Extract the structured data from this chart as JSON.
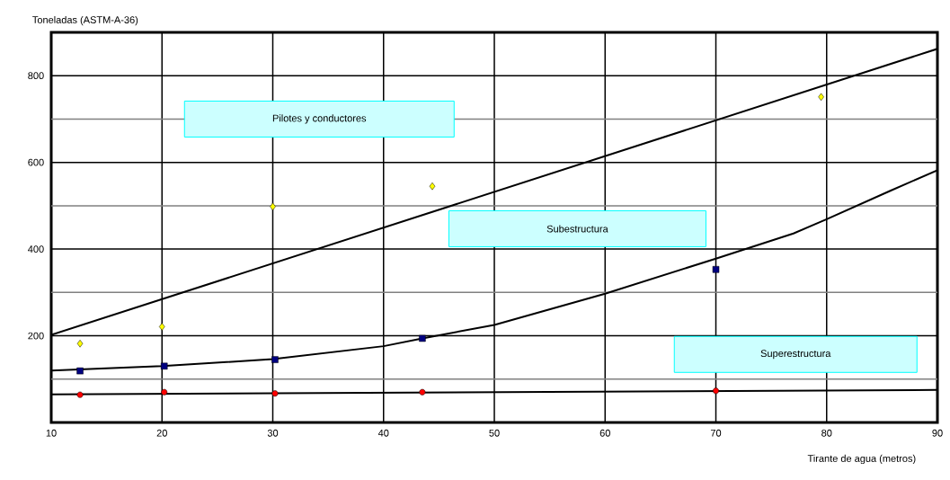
{
  "chart_data": {
    "type": "scatter",
    "xlabel": "Tirante de agua (metros)",
    "ylabel": "Toneladas (ASTM-A-36)",
    "xlim": [
      10,
      90
    ],
    "ylim": [
      0,
      900
    ],
    "xticks": [
      10,
      20,
      30,
      40,
      50,
      60,
      70,
      80,
      90
    ],
    "yticks": [
      {
        "value": 100,
        "label": null
      },
      200,
      {
        "value": 300,
        "label": null
      },
      400,
      {
        "value": 500,
        "label": null
      },
      600,
      {
        "value": 700,
        "label": null
      },
      800
    ],
    "grid": true,
    "series": [
      {
        "marker": "diamond",
        "color": "#ffff00",
        "x": [
          12.6,
          20,
          30,
          44.4,
          79.5
        ],
        "values": [
          182,
          221,
          498,
          545,
          751
        ]
      },
      {
        "marker": "square",
        "color": "#000080",
        "x": [
          12.6,
          20.2,
          30.2,
          43.5,
          70
        ],
        "values": [
          119,
          130,
          145,
          194,
          353
        ]
      },
      {
        "marker": "circle",
        "color": "#ff0000",
        "x": [
          12.6,
          20.2,
          30.2,
          43.5,
          70
        ],
        "values": [
          64,
          70,
          67,
          70,
          73
        ]
      },
      {
        "type": "line",
        "marker": "none",
        "color": "#000000",
        "x": [
          10,
          90
        ],
        "values": [
          202,
          862
        ]
      },
      {
        "type": "line",
        "marker": "none",
        "color": "#000000",
        "x": [
          10,
          20,
          30,
          40,
          43.5,
          50,
          60,
          70,
          77,
          80,
          85.7,
          90
        ],
        "values": [
          120,
          130,
          146,
          176,
          194,
          225,
          297,
          378,
          436,
          469,
          534,
          582
        ]
      },
      {
        "type": "line",
        "marker": "none",
        "color": "#000000",
        "x": [
          10,
          90
        ],
        "values": [
          65,
          75
        ]
      }
    ],
    "annotations": [
      "Pilotes y conductores",
      "Subestructura",
      "Superestructura"
    ]
  }
}
